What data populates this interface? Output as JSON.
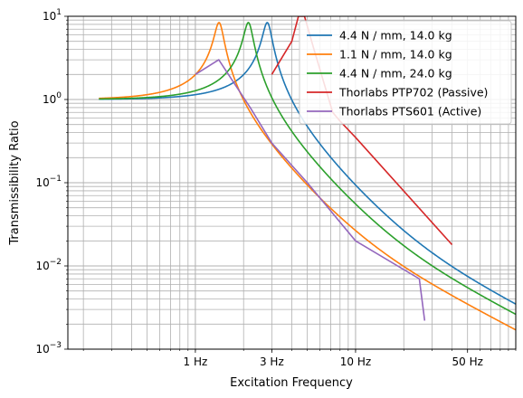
{
  "chart_data": {
    "type": "line",
    "xlabel": "Excitation Frequency",
    "ylabel": "Transmissibility Ratio",
    "xscale": "log",
    "yscale": "log",
    "xlim": [
      0.16,
      100
    ],
    "ylim": [
      0.001,
      10
    ],
    "grid": "major and minor, both axes",
    "legend_position": "top-right",
    "x_ticks": [
      {
        "value": 1,
        "label": "1 Hz"
      },
      {
        "value": 3,
        "label": "3 Hz"
      },
      {
        "value": 10,
        "label": "10 Hz"
      },
      {
        "value": 50,
        "label": "50 Hz"
      }
    ],
    "y_ticks": [
      {
        "value": 0.001,
        "base": "10",
        "exp": "−3"
      },
      {
        "value": 0.01,
        "base": "10",
        "exp": "−2"
      },
      {
        "value": 0.1,
        "base": "10",
        "exp": "−1"
      },
      {
        "value": 1,
        "base": "10",
        "exp": "0"
      },
      {
        "value": 10,
        "base": "10",
        "exp": "1"
      }
    ],
    "series": [
      {
        "name": "4.4 N / mm, 14.0 kg",
        "color": "#1f77b4",
        "model": {
          "fn": 2.82,
          "zeta": 0.06
        }
      },
      {
        "name": "1.1 N / mm, 14.0 kg",
        "color": "#ff7f0e",
        "model": {
          "fn": 1.41,
          "zeta": 0.06
        }
      },
      {
        "name": "4.4 N / mm, 24.0 kg",
        "color": "#2ca02c",
        "model": {
          "fn": 2.15,
          "zeta": 0.06
        }
      },
      {
        "name": "Thorlabs PTP702 (Passive)",
        "color": "#d62728",
        "points": [
          [
            3,
            2
          ],
          [
            4,
            5
          ],
          [
            4.4,
            10
          ],
          [
            4.8,
            10
          ],
          [
            5.5,
            4
          ],
          [
            7.2,
            0.7
          ],
          [
            8,
            0.55
          ],
          [
            10,
            0.35
          ],
          [
            40,
            0.018
          ]
        ]
      },
      {
        "name": "Thorlabs PTS601 (Active)",
        "color": "#9467bd",
        "points": [
          [
            1,
            2
          ],
          [
            1.4,
            3
          ],
          [
            2.2,
            0.8
          ],
          [
            3,
            0.3
          ],
          [
            5,
            0.1
          ],
          [
            10,
            0.02
          ],
          [
            25,
            0.007
          ],
          [
            27,
            0.0022
          ]
        ]
      }
    ]
  }
}
